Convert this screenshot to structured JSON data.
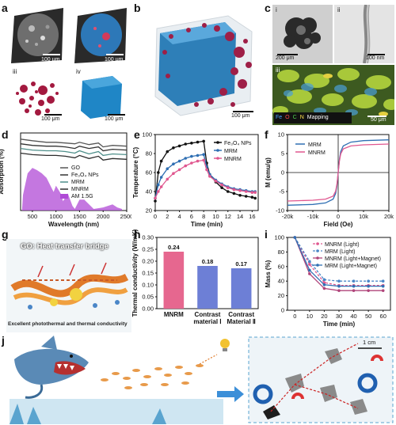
{
  "panels": {
    "a": {
      "letter": "a",
      "subs": [
        "i",
        "ii",
        "iii",
        "iv"
      ],
      "scale": "100 μm"
    },
    "b": {
      "letter": "b",
      "scale": "100 μm"
    },
    "c": {
      "letter": "c",
      "subs": [
        "i",
        "ii",
        "iii"
      ],
      "scale_i": "200 μm",
      "scale_ii": "100 nm",
      "scale_iii": "50 μm",
      "mapping": [
        "Fe",
        "O",
        "C",
        "N",
        "Mapping"
      ],
      "mapping_colors": [
        "#4aa3ff",
        "#ff4a4a",
        "#4dd24d",
        "#ffe14a",
        "#ffffff"
      ]
    },
    "d": {
      "letter": "d"
    },
    "e": {
      "letter": "e"
    },
    "f": {
      "letter": "f"
    },
    "g": {
      "letter": "g",
      "title": "GO: Heat transfer bridge",
      "caption": "Excellent photothermal and thermal conductivity"
    },
    "h": {
      "letter": "h"
    },
    "i": {
      "letter": "i"
    },
    "j": {
      "letter": "j",
      "scale": "1 cm"
    }
  },
  "chart_data": [
    {
      "id": "d",
      "type": "line",
      "xlabel": "Wavelength (nm)",
      "ylabel": "Absorption (%)",
      "xlim": [
        250,
        2500
      ],
      "xticks": [
        500,
        1000,
        1500,
        2000,
        2500
      ],
      "series": [
        {
          "name": "GO",
          "color": "#555555",
          "x": [
            250,
            500,
            800,
            1000,
            1200,
            1400,
            1500,
            1700,
            1900,
            2000,
            2200,
            2500
          ],
          "y": [
            92,
            90,
            88,
            88,
            87,
            86,
            88,
            85,
            87,
            82,
            84,
            83
          ]
        },
        {
          "name": "Fe3O4 NPs",
          "color": "#333333",
          "x": [
            250,
            500,
            800,
            1000,
            1200,
            1400,
            1500,
            1700,
            1900,
            2000,
            2200,
            2500
          ],
          "y": [
            86,
            84,
            83,
            83,
            82,
            80,
            83,
            80,
            82,
            77,
            79,
            78
          ]
        },
        {
          "name": "MRM",
          "color": "#4e8f8a",
          "x": [
            250,
            500,
            800,
            1000,
            1200,
            1400,
            1500,
            1700,
            1900,
            2000,
            2200,
            2500
          ],
          "y": [
            80,
            78,
            77,
            77,
            76,
            74,
            77,
            73,
            76,
            71,
            73,
            72
          ]
        },
        {
          "name": "MNRM",
          "color": "#2c2c2c",
          "x": [
            250,
            500,
            800,
            1000,
            1200,
            1400,
            1500,
            1700,
            1900,
            2000,
            2200,
            2500
          ],
          "y": [
            74,
            72,
            71,
            71,
            70,
            68,
            71,
            67,
            70,
            65,
            67,
            66
          ]
        },
        {
          "name": "AM 1.5G",
          "color": "#b04ad6",
          "fill": true
        }
      ],
      "legend_labels": [
        "GO",
        "Fe₃O₄ NPs",
        "MRM",
        "MNRM",
        "AM 1.5G"
      ]
    },
    {
      "id": "e",
      "type": "line",
      "xlabel": "Time (min)",
      "ylabel": "Temperature (°C)",
      "xlim": [
        0,
        17
      ],
      "ylim": [
        20,
        100
      ],
      "xticks": [
        0,
        2,
        4,
        6,
        8,
        10,
        12,
        14,
        16
      ],
      "yticks": [
        20,
        40,
        60,
        80,
        100
      ],
      "series": [
        {
          "name": "Fe₃O₄ NPs",
          "color": "#111111",
          "x": [
            0,
            0.5,
            1,
            2,
            3,
            4,
            5,
            6,
            7,
            8,
            8.5,
            9,
            10,
            11,
            12,
            13,
            14,
            15,
            16,
            16.5
          ],
          "y": [
            30,
            60,
            72,
            82,
            86,
            88,
            90,
            91,
            92,
            93,
            70,
            58,
            50,
            44,
            40,
            38,
            36,
            35,
            34,
            33
          ]
        },
        {
          "name": "MRM",
          "color": "#2f6fb3",
          "x": [
            0,
            0.5,
            1,
            2,
            3,
            4,
            5,
            6,
            7,
            8,
            8.5,
            9,
            10,
            11,
            12,
            13,
            14,
            15,
            16,
            16.5
          ],
          "y": [
            33,
            47,
            55,
            64,
            69,
            72,
            75,
            77,
            78,
            79,
            66,
            58,
            52,
            48,
            45,
            43,
            42,
            41,
            40,
            40
          ]
        },
        {
          "name": "MNRM",
          "color": "#e0578f",
          "x": [
            0,
            0.5,
            1,
            2,
            3,
            4,
            5,
            6,
            7,
            8,
            8.5,
            9,
            10,
            11,
            12,
            13,
            14,
            15,
            16,
            16.5
          ],
          "y": [
            33,
            40,
            45,
            53,
            59,
            63,
            67,
            70,
            72,
            73,
            63,
            56,
            51,
            47,
            44,
            42,
            41,
            40,
            39,
            39
          ]
        }
      ]
    },
    {
      "id": "f",
      "type": "line",
      "xlabel": "Field (Oe)",
      "ylabel": "M (emu/g)",
      "xlim": [
        -20000,
        20000
      ],
      "ylim": [
        -10,
        10
      ],
      "xticks": [
        -20000,
        -10000,
        0,
        10000,
        20000
      ],
      "xtick_labels": [
        "-20k",
        "-10k",
        "0",
        "10k",
        "20k"
      ],
      "yticks": [
        -10,
        -5,
        0,
        5,
        10
      ],
      "series": [
        {
          "name": "MRM",
          "color": "#2f6fb3",
          "x": [
            -20000,
            -15000,
            -10000,
            -5000,
            -2000,
            -1000,
            -500,
            0,
            500,
            1000,
            2000,
            5000,
            10000,
            15000,
            20000
          ],
          "y": [
            -8.6,
            -8.5,
            -8.4,
            -8.0,
            -7.0,
            -5.5,
            -3.5,
            0,
            3.5,
            5.5,
            7.0,
            8.0,
            8.4,
            8.5,
            8.6
          ]
        },
        {
          "name": "MNRM",
          "color": "#e0578f",
          "x": [
            -20000,
            -15000,
            -10000,
            -5000,
            -2000,
            -1000,
            -500,
            0,
            500,
            1000,
            2000,
            5000,
            10000,
            15000,
            20000
          ],
          "y": [
            -7.5,
            -7.4,
            -7.3,
            -7.0,
            -6.2,
            -4.9,
            -3.1,
            0,
            3.1,
            4.9,
            6.2,
            7.0,
            7.3,
            7.4,
            7.5
          ]
        }
      ]
    },
    {
      "id": "h",
      "type": "bar",
      "ylabel": "Thermal conductivity (W/mK)",
      "ylim": [
        0,
        0.3
      ],
      "yticks": [
        0.0,
        0.05,
        0.1,
        0.15,
        0.2,
        0.25,
        0.3
      ],
      "categories": [
        "MNRM",
        "Contrast material Ⅰ",
        "Contrast Material Ⅱ"
      ],
      "category_lines": [
        [
          "MNRM"
        ],
        [
          "Contrast",
          "material Ⅰ"
        ],
        [
          "Contrast",
          "Material Ⅱ"
        ]
      ],
      "values": [
        0.24,
        0.18,
        0.17
      ],
      "value_labels": [
        "0.24",
        "0.18",
        "0.17"
      ],
      "colors": [
        "#e6678f",
        "#6d7fd6",
        "#6d7fd6"
      ]
    },
    {
      "id": "i",
      "type": "line",
      "xlabel": "Time (min)",
      "ylabel": "Mass (%)",
      "xlim": [
        -5,
        65
      ],
      "ylim": [
        0,
        100
      ],
      "xticks": [
        0,
        10,
        20,
        30,
        40,
        50,
        60
      ],
      "yticks": [
        0,
        20,
        40,
        60,
        80,
        100
      ],
      "series": [
        {
          "name": "MNRM (Light)",
          "color": "#e0578f",
          "dash": "3,2",
          "x": [
            0,
            10,
            20,
            30,
            40,
            50,
            60
          ],
          "y": [
            100,
            63,
            38,
            34,
            34,
            34,
            34
          ]
        },
        {
          "name": "MRM  (Light)",
          "color": "#4a86c7",
          "dash": "3,2",
          "x": [
            0,
            10,
            20,
            30,
            40,
            50,
            60
          ],
          "y": [
            100,
            67,
            42,
            40,
            40,
            40,
            40
          ]
        },
        {
          "name": "MNRM (Light+Magnet)",
          "color": "#b0447a",
          "dash": "",
          "x": [
            0,
            10,
            20,
            30,
            40,
            50,
            60
          ],
          "y": [
            100,
            50,
            30,
            27,
            27,
            27,
            27
          ]
        },
        {
          "name": "MRM  (Light+Magnet)",
          "color": "#2f6fb3",
          "dash": "",
          "x": [
            0,
            10,
            20,
            30,
            40,
            50,
            60
          ],
          "y": [
            100,
            55,
            35,
            33,
            33,
            33,
            33
          ]
        }
      ]
    }
  ]
}
